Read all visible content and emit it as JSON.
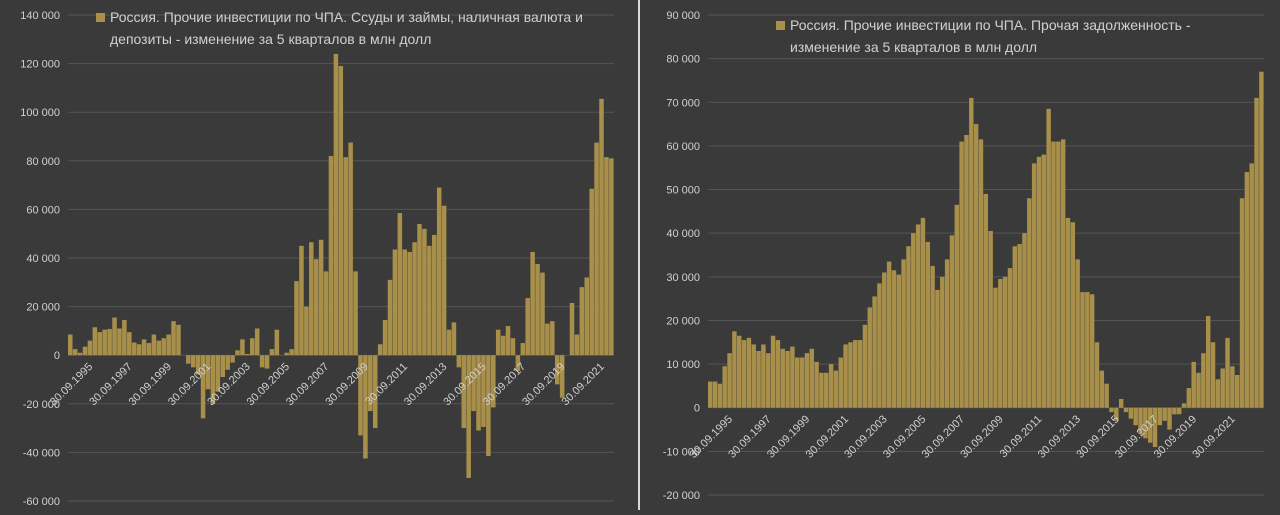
{
  "colors": {
    "background": "#3a3a3a",
    "bar": "#a8904a",
    "grid": "#555555",
    "text": "#d0d0d0",
    "divider": "#d9d9d9"
  },
  "chart_data": [
    {
      "type": "bar",
      "legend": "Россия. Прочие инвестиции по ЧПА. Ссуды и займы, наличная валюта и депозиты - изменение за 5 кварталов в млн долл",
      "legend_lines": [
        "Россия. Прочие инвестиции по ЧПА. Ссуды и займы, наличная валюта и",
        "депозиты - изменение за 5 кварталов в млн долл"
      ],
      "legend_position": "top",
      "ylim": [
        -60000,
        140000
      ],
      "yticks": [
        140000,
        120000,
        100000,
        80000,
        60000,
        40000,
        20000,
        0,
        -20000,
        -40000,
        -60000
      ],
      "ytick_labels": [
        "140 000",
        "120 000",
        "100 000",
        "80 000",
        "60 000",
        "40 000",
        "20 000",
        "0",
        "-20 000",
        "-40 000",
        "-60 000"
      ],
      "xtick_labels": [
        "30.09.1995",
        "30.09.1997",
        "30.09.1999",
        "30.09.2001",
        "30.09.2003",
        "30.09.2005",
        "30.09.2007",
        "30.09.2009",
        "30.09.2011",
        "30.09.2013",
        "30.09.2015",
        "30.09.2017",
        "30.09.2019",
        "30.09.2021"
      ],
      "x_start": "1995 Q3",
      "values": [
        8500,
        2500,
        1000,
        3500,
        6000,
        11500,
        9500,
        10500,
        10800,
        15500,
        11000,
        14500,
        9500,
        5200,
        4500,
        6500,
        5000,
        8500,
        6000,
        7000,
        8500,
        14000,
        12500,
        0,
        -3500,
        -5000,
        -8000,
        -26000,
        -14000,
        -20000,
        -15000,
        -9000,
        -6000,
        -3000,
        2000,
        6500,
        500,
        7000,
        11000,
        -5000,
        -5500,
        2500,
        10500,
        0,
        1000,
        2500,
        30500,
        45000,
        20000,
        46500,
        39500,
        47500,
        34500,
        82000,
        124000,
        119000,
        81500,
        87500,
        34500,
        -33000,
        -42500,
        -23000,
        -30000,
        4500,
        14500,
        31000,
        43500,
        58500,
        43500,
        42500,
        46500,
        54000,
        52000,
        45000,
        49500,
        69000,
        61500,
        10500,
        13500,
        -5000,
        -30000,
        -50500,
        -23000,
        -31000,
        -29500,
        -41500,
        -21500,
        10500,
        8000,
        12000,
        7000,
        -6500,
        5000,
        23500,
        42500,
        37500,
        34000,
        13000,
        14000,
        -12000,
        -17500,
        0,
        21500,
        8500,
        28000,
        32000,
        68500,
        87500,
        105500,
        81500,
        81000
      ]
    },
    {
      "type": "bar",
      "legend": "Россия. Прочие инвестиции по ЧПА. Прочая задолженность - изменение за 5 кварталов в млн долл",
      "legend_lines": [
        "Россия. Прочие инвестиции по ЧПА. Прочая задолженность -",
        "изменение за 5 кварталов в млн долл"
      ],
      "legend_position": "top",
      "ylim": [
        -20000,
        90000
      ],
      "yticks": [
        90000,
        80000,
        70000,
        60000,
        50000,
        40000,
        30000,
        20000,
        10000,
        0,
        -10000,
        -20000
      ],
      "ytick_labels": [
        "90 000",
        "80 000",
        "70 000",
        "60 000",
        "50 000",
        "40 000",
        "30 000",
        "20 000",
        "10 000",
        "0",
        "-10 000",
        "-20 000"
      ],
      "xtick_labels": [
        "30.09.1995",
        "30.09.1997",
        "30.09.1999",
        "30.09.2001",
        "30.09.2003",
        "30.09.2005",
        "30.09.2007",
        "30.09.2009",
        "30.09.2011",
        "30.09.2013",
        "30.09.2015",
        "30.09.2017",
        "30.09.2019",
        "30.09.2021"
      ],
      "x_start": "1995 Q3",
      "values": [
        6000,
        6000,
        5500,
        9500,
        12500,
        17500,
        16500,
        15500,
        16000,
        14500,
        13000,
        14500,
        12500,
        16500,
        15500,
        13500,
        13000,
        14000,
        11500,
        11500,
        12500,
        13500,
        10500,
        8000,
        8000,
        10000,
        8500,
        11500,
        14500,
        15000,
        15500,
        15500,
        19000,
        23000,
        25500,
        28500,
        31000,
        33500,
        31500,
        30500,
        34000,
        37000,
        40000,
        42000,
        43500,
        38000,
        32500,
        27000,
        30000,
        34000,
        39500,
        46500,
        61000,
        62500,
        71000,
        65000,
        61500,
        49000,
        40500,
        27500,
        29500,
        30000,
        32000,
        37000,
        37500,
        40000,
        48000,
        56000,
        57500,
        58000,
        68500,
        61000,
        61000,
        61500,
        43500,
        42500,
        34000,
        26500,
        26500,
        26000,
        15000,
        8500,
        5500,
        -1000,
        -3000,
        2000,
        -1000,
        -2500,
        -4000,
        -6000,
        -7000,
        -8000,
        -9000,
        -4000,
        -3000,
        -5000,
        -1500,
        -1500,
        1000,
        4500,
        10500,
        8000,
        12500,
        21000,
        15000,
        6500,
        9000,
        16000,
        9500,
        7500,
        48000,
        54000,
        56000,
        71000,
        77000
      ]
    }
  ]
}
